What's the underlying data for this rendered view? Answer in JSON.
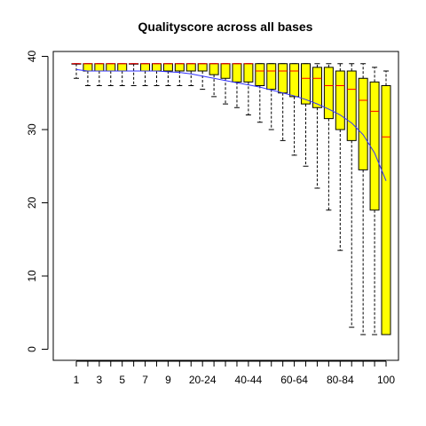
{
  "chart_data": {
    "type": "box",
    "title": "Qualityscore across all bases",
    "xlabel": "",
    "ylabel": "",
    "ylim": [
      0,
      40
    ],
    "y_ticks": [
      0,
      10,
      20,
      30,
      40
    ],
    "categories": [
      "1",
      "2",
      "3",
      "4",
      "5",
      "6",
      "7",
      "8",
      "9",
      "10-14",
      "15-19",
      "20-24",
      "25-29",
      "30-34",
      "35-39",
      "40-44",
      "45-49",
      "50-54",
      "55-59",
      "60-64",
      "65-69",
      "70-74",
      "75-79",
      "80-84",
      "85-89",
      "90-94",
      "95-99",
      "100"
    ],
    "x_tick_labels_shown": [
      "1",
      "3",
      "5",
      "7",
      "9",
      "20-24",
      "40-44",
      "60-64",
      "80-84",
      "100"
    ],
    "colors": {
      "box_fill": "#ffff00",
      "median": "#ff0000",
      "mean_line": "#3333ff",
      "outline": "#000000"
    },
    "boxes": [
      {
        "whisker_low": 37,
        "q1": 39,
        "median": 39,
        "q3": 39,
        "whisker_high": 39
      },
      {
        "whisker_low": 36,
        "q1": 38,
        "median": 39,
        "q3": 39,
        "whisker_high": 39
      },
      {
        "whisker_low": 36,
        "q1": 38,
        "median": 39,
        "q3": 39,
        "whisker_high": 39
      },
      {
        "whisker_low": 36,
        "q1": 38,
        "median": 39,
        "q3": 39,
        "whisker_high": 39
      },
      {
        "whisker_low": 36,
        "q1": 38,
        "median": 39,
        "q3": 39,
        "whisker_high": 39
      },
      {
        "whisker_low": 36,
        "q1": 39,
        "median": 39,
        "q3": 39,
        "whisker_high": 39
      },
      {
        "whisker_low": 36,
        "q1": 38,
        "median": 39,
        "q3": 39,
        "whisker_high": 39
      },
      {
        "whisker_low": 36,
        "q1": 38,
        "median": 39,
        "q3": 39,
        "whisker_high": 39
      },
      {
        "whisker_low": 36,
        "q1": 38,
        "median": 39,
        "q3": 39,
        "whisker_high": 39
      },
      {
        "whisker_low": 36,
        "q1": 38,
        "median": 39,
        "q3": 39,
        "whisker_high": 39
      },
      {
        "whisker_low": 36,
        "q1": 38,
        "median": 39,
        "q3": 39,
        "whisker_high": 39
      },
      {
        "whisker_low": 35.5,
        "q1": 38,
        "median": 39,
        "q3": 39,
        "whisker_high": 39
      },
      {
        "whisker_low": 34.5,
        "q1": 37.5,
        "median": 39,
        "q3": 39,
        "whisker_high": 39
      },
      {
        "whisker_low": 33.5,
        "q1": 37,
        "median": 39,
        "q3": 39,
        "whisker_high": 39
      },
      {
        "whisker_low": 33,
        "q1": 36.5,
        "median": 39,
        "q3": 39,
        "whisker_high": 39
      },
      {
        "whisker_low": 32,
        "q1": 36.5,
        "median": 39,
        "q3": 39,
        "whisker_high": 39
      },
      {
        "whisker_low": 31,
        "q1": 36,
        "median": 38,
        "q3": 39,
        "whisker_high": 39
      },
      {
        "whisker_low": 30,
        "q1": 35.5,
        "median": 38,
        "q3": 39,
        "whisker_high": 39
      },
      {
        "whisker_low": 28.5,
        "q1": 35,
        "median": 38,
        "q3": 39,
        "whisker_high": 39
      },
      {
        "whisker_low": 26.5,
        "q1": 34.5,
        "median": 38,
        "q3": 39,
        "whisker_high": 39
      },
      {
        "whisker_low": 25,
        "q1": 33.5,
        "median": 37,
        "q3": 39,
        "whisker_high": 39
      },
      {
        "whisker_low": 22,
        "q1": 33,
        "median": 37,
        "q3": 38.5,
        "whisker_high": 39
      },
      {
        "whisker_low": 19,
        "q1": 31.5,
        "median": 36,
        "q3": 38.5,
        "whisker_high": 39
      },
      {
        "whisker_low": 13.5,
        "q1": 30,
        "median": 36,
        "q3": 38,
        "whisker_high": 39
      },
      {
        "whisker_low": 3,
        "q1": 28.5,
        "median": 35.5,
        "q3": 38,
        "whisker_high": 39
      },
      {
        "whisker_low": 2,
        "q1": 24.5,
        "median": 34,
        "q3": 37,
        "whisker_high": 39
      },
      {
        "whisker_low": 2,
        "q1": 19,
        "median": 32.5,
        "q3": 36.5,
        "whisker_high": 38.5
      },
      {
        "whisker_low": 2,
        "q1": 2,
        "median": 29,
        "q3": 36,
        "whisker_high": 38
      }
    ],
    "mean_line": [
      38.2,
      38.0,
      38.0,
      38.0,
      38.0,
      38.0,
      38.0,
      38.0,
      37.9,
      37.8,
      37.6,
      37.3,
      37.0,
      36.7,
      36.4,
      36.1,
      35.8,
      35.4,
      35.0,
      34.6,
      34.1,
      33.5,
      32.8,
      32.0,
      30.9,
      29.3,
      26.8,
      23.0
    ]
  }
}
